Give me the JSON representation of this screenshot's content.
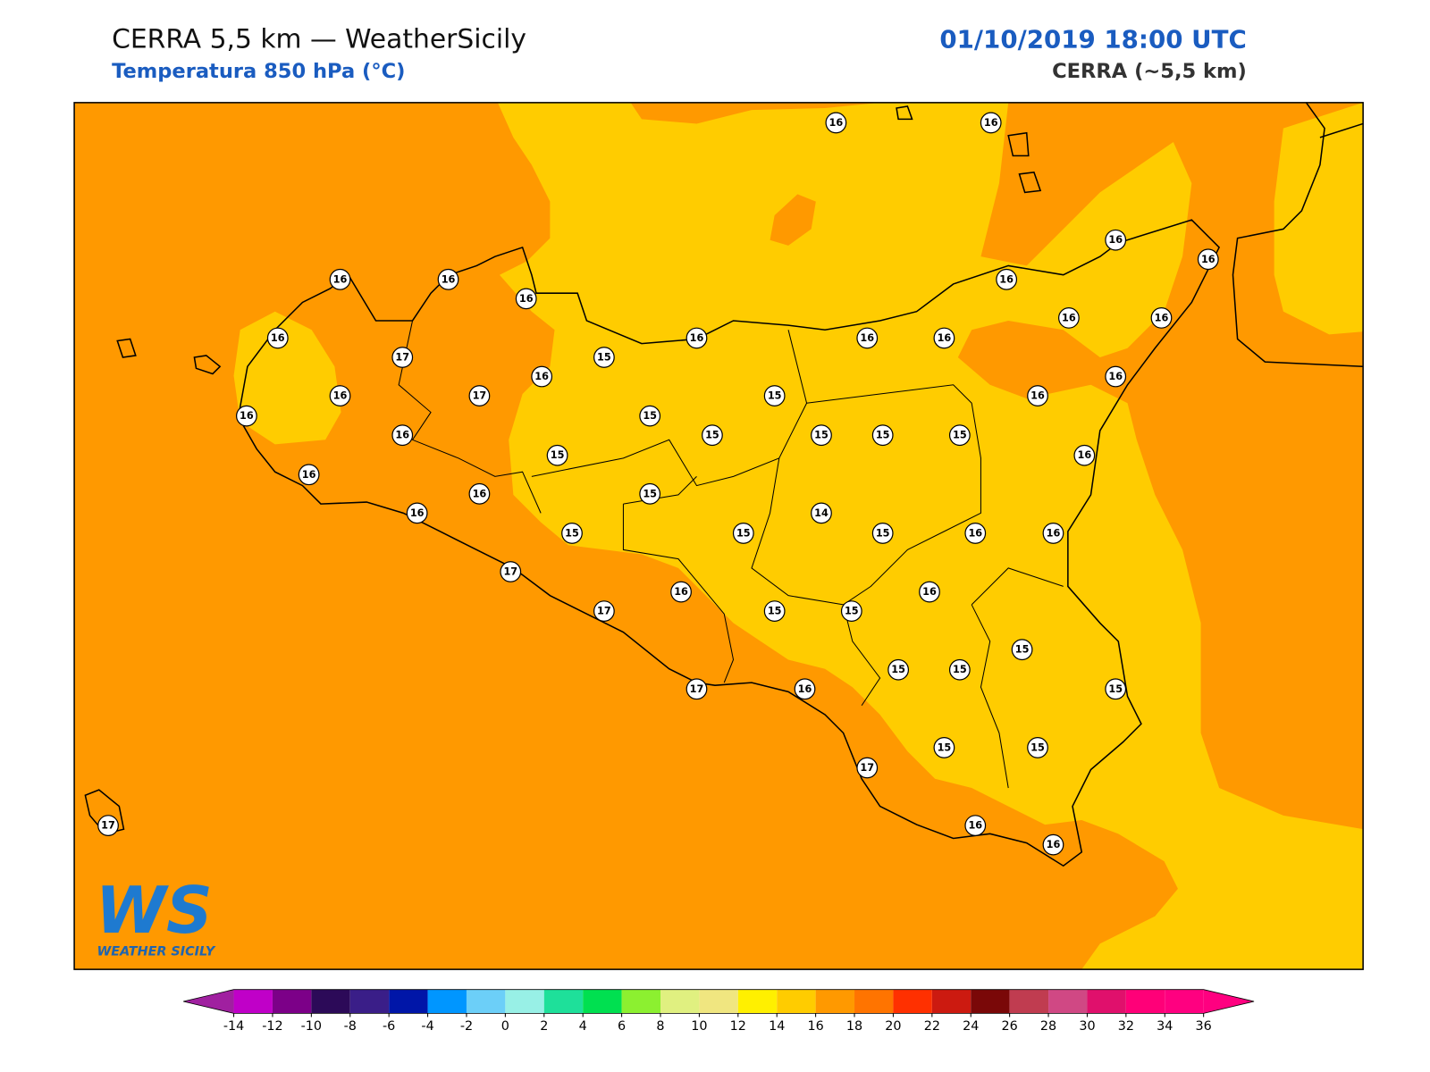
{
  "header": {
    "title": "CERRA 5,5 km — WeatherSicily",
    "subtitle": "Temperatura 850 hPa (°C)",
    "datetime": "01/10/2019 18:00 UTC",
    "model": "CERRA (~5,5 km)"
  },
  "logo": {
    "mark": "WS",
    "name": "WEATHER SICILY"
  },
  "stations": [
    16,
    16,
    16,
    16,
    16,
    16,
    17,
    15,
    16,
    16,
    16,
    16,
    16,
    16,
    16,
    16,
    16,
    17,
    16,
    16,
    15,
    15,
    16,
    16,
    16,
    15,
    15,
    15,
    15,
    15,
    16,
    16,
    16,
    15,
    16,
    15,
    15,
    14,
    15,
    16,
    16,
    17,
    16,
    16,
    17,
    15,
    15,
    15,
    15,
    15,
    15,
    17,
    16,
    15,
    15,
    17,
    16,
    16,
    17
  ],
  "colorbar": {
    "ticks": [
      -14,
      -12,
      -10,
      -8,
      -6,
      -4,
      -2,
      0,
      2,
      4,
      6,
      8,
      10,
      12,
      14,
      16,
      18,
      20,
      22,
      24,
      26,
      28,
      30,
      32,
      34,
      36
    ],
    "colors": [
      "#c000c8",
      "#7c0088",
      "#2c0a58",
      "#3a1e88",
      "#0016a8",
      "#0096ff",
      "#6ccff8",
      "#98f0e6",
      "#1ee09a",
      "#00e050",
      "#8cf030",
      "#e0f080",
      "#f0e680",
      "#fff000",
      "#ffcc00",
      "#ff9900",
      "#ff7400",
      "#ff3000",
      "#cc1a10",
      "#7a0808",
      "#c03c50",
      "#d04884",
      "#e0106c",
      "#ff0078",
      "#ff0080"
    ],
    "under_color": "#a020a0",
    "over_color": "#ff0080"
  }
}
